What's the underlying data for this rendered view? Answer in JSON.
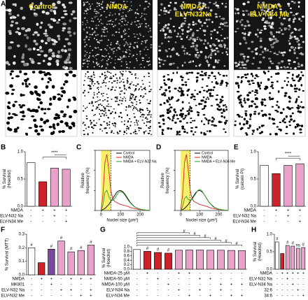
{
  "panel_a": {
    "label": "A",
    "images": [
      {
        "label_lines": [
          "Control"
        ]
      },
      {
        "label_lines": [
          "NMDA"
        ]
      },
      {
        "label_lines": [
          "NMDA+",
          "ELV-N32Na"
        ]
      },
      {
        "label_lines": [
          "NMDA+",
          "ELV-N34 Me"
        ]
      }
    ]
  },
  "chart_data": [
    {
      "type": "bar",
      "panel": "B",
      "ylabel_lines": [
        "% Survival",
        "(Hoechst)"
      ],
      "ylim": [
        0,
        1.0
      ],
      "yticks": [
        {
          "value": 0,
          "label": "0.0"
        },
        0.5,
        {
          "value": 1,
          "label": "1.0"
        }
      ],
      "values": [
        0.8,
        0.45,
        0.7,
        0.68
      ],
      "colors": [
        "#ffffff",
        "#cc2229",
        "#e8a2c9",
        "#e8a2c9"
      ],
      "annotation": "****",
      "conditions": [
        {
          "name": "NMDA",
          "signs": [
            "-",
            "+",
            "+",
            "+"
          ]
        },
        {
          "name": "ELV-N32 Na",
          "signs": [
            "-",
            "-",
            "+",
            "-"
          ]
        },
        {
          "name": "ELV-N34 Me",
          "signs": [
            "-",
            "-",
            "-",
            "+"
          ]
        }
      ]
    },
    {
      "type": "line",
      "panel": "C",
      "xlabel": "Nuclei size (µm²)",
      "ylabel_lines": [
        "Relative",
        "frequency (%)"
      ],
      "xlim": [
        -30,
        250
      ],
      "ylim": [
        0,
        3
      ],
      "xticks": [
        0,
        100,
        200
      ],
      "yticks": [
        0,
        1,
        2,
        3
      ],
      "highlight_range": [
        0,
        50
      ],
      "threshold": 50,
      "x": [
        0,
        10,
        20,
        30,
        40,
        50,
        60,
        70,
        80,
        90,
        100,
        110,
        120,
        130,
        140,
        150,
        160,
        170,
        180,
        190,
        200,
        210,
        220,
        230,
        240,
        250
      ],
      "series": [
        {
          "name": "Control",
          "color": "#000000",
          "values": [
            0,
            0.05,
            0.1,
            0.2,
            0.3,
            0.45,
            0.6,
            0.75,
            0.9,
            0.98,
            1.0,
            0.95,
            0.85,
            0.7,
            0.55,
            0.4,
            0.3,
            0.2,
            0.14,
            0.1,
            0.07,
            0.05,
            0.03,
            0.02,
            0.01,
            0
          ]
        },
        {
          "name": "NMDA",
          "color": "#d62728",
          "values": [
            0,
            0.8,
            2.4,
            2.8,
            2.0,
            1.0,
            0.6,
            0.45,
            0.4,
            0.35,
            0.3,
            0.28,
            0.25,
            0.22,
            0.2,
            0.15,
            0.12,
            0.1,
            0.08,
            0.06,
            0.05,
            0.04,
            0.03,
            0.02,
            0.01,
            0
          ]
        },
        {
          "name": "NMDA + ELV-N32 Na",
          "color": "#2ca02c",
          "values": [
            0,
            0.3,
            0.9,
            1.0,
            0.7,
            0.5,
            0.5,
            0.6,
            0.75,
            0.9,
            0.95,
            0.9,
            0.8,
            0.65,
            0.5,
            0.38,
            0.28,
            0.2,
            0.14,
            0.1,
            0.07,
            0.05,
            0.03,
            0.02,
            0.01,
            0
          ]
        }
      ]
    },
    {
      "type": "line",
      "panel": "D",
      "xlabel": "Nuclei size (µm²)",
      "ylabel_lines": [
        "Relative",
        "frequency (%)"
      ],
      "xlim": [
        -30,
        250
      ],
      "ylim": [
        0,
        3
      ],
      "xticks": [
        0,
        100,
        200
      ],
      "yticks": [
        0,
        1,
        2,
        3
      ],
      "highlight_range": [
        0,
        50
      ],
      "threshold": 50,
      "x": [
        0,
        10,
        20,
        30,
        40,
        50,
        60,
        70,
        80,
        90,
        100,
        110,
        120,
        130,
        140,
        150,
        160,
        170,
        180,
        190,
        200,
        210,
        220,
        230,
        240,
        250
      ],
      "series": [
        {
          "name": "Control",
          "color": "#000000",
          "values": [
            0,
            0.05,
            0.1,
            0.2,
            0.3,
            0.45,
            0.6,
            0.75,
            0.9,
            0.98,
            1.0,
            0.95,
            0.85,
            0.7,
            0.55,
            0.4,
            0.3,
            0.2,
            0.14,
            0.1,
            0.07,
            0.05,
            0.03,
            0.02,
            0.01,
            0
          ]
        },
        {
          "name": "NMDA",
          "color": "#d62728",
          "values": [
            0,
            0.8,
            2.4,
            2.8,
            2.0,
            1.0,
            0.6,
            0.45,
            0.4,
            0.35,
            0.3,
            0.28,
            0.25,
            0.22,
            0.2,
            0.15,
            0.12,
            0.1,
            0.08,
            0.06,
            0.05,
            0.04,
            0.03,
            0.02,
            0.01,
            0
          ]
        },
        {
          "name": "NMDA + ELV-N34 Me",
          "color": "#2ca02c",
          "values": [
            0,
            0.2,
            0.6,
            0.7,
            0.55,
            0.5,
            0.55,
            0.7,
            0.85,
            1.0,
            1.05,
            1.0,
            0.85,
            0.7,
            0.55,
            0.4,
            0.3,
            0.22,
            0.15,
            0.1,
            0.07,
            0.05,
            0.03,
            0.02,
            0.01,
            0
          ]
        }
      ]
    },
    {
      "type": "bar",
      "panel": "E",
      "ylabel_lines": [
        "% Survival",
        "(calcein PI)"
      ],
      "ylim": [
        0,
        1.0
      ],
      "yticks": [
        {
          "value": 0,
          "label": "0.0"
        },
        0.5,
        {
          "value": 1,
          "label": "1.0"
        }
      ],
      "values": [
        0.75,
        0.6,
        0.75,
        0.78
      ],
      "colors": [
        "#ffffff",
        "#cc2229",
        "#e8a2c9",
        "#e8a2c9"
      ],
      "annotation": "****",
      "conditions": [
        {
          "name": "NMDA",
          "signs": [
            "-",
            "+",
            "+",
            "+"
          ]
        },
        {
          "name": "ELV-N32 Na",
          "signs": [
            "-",
            "-",
            "+",
            "-"
          ]
        },
        {
          "name": "ELV-N34 Me",
          "signs": [
            "-",
            "-",
            "-",
            "+"
          ]
        }
      ]
    },
    {
      "type": "bar",
      "panel": "F",
      "ylabel_lines": [
        "% Survival (MTT)"
      ],
      "ylim": [
        0,
        0.3
      ],
      "yticks": [
        {
          "value": 0,
          "label": "0.0"
        },
        0.1,
        0.2,
        0.3
      ],
      "values": [
        0.2,
        0.09,
        0.19,
        0.25,
        0.17,
        0.18,
        0.22
      ],
      "colors": [
        "#ffffff",
        "#cc2229",
        "#7b4a9e",
        "#e8a2c9",
        "#e8a2c9",
        "#e8a2c9",
        "#e8a2c9"
      ],
      "bar_annotations": [
        "#",
        null,
        "#",
        "#",
        "#",
        "#",
        "#"
      ],
      "conditions": [
        {
          "name": "NMDA",
          "signs": [
            "-",
            "+",
            "+",
            "-",
            "+",
            "+",
            "+"
          ]
        },
        {
          "name": "MK801",
          "signs": [
            "-",
            "-",
            "+",
            "-",
            "-",
            "-",
            "-"
          ]
        },
        {
          "name": "ELV-N32 Na",
          "signs": [
            "-",
            "-",
            "-",
            "+",
            "+",
            "-",
            "+"
          ]
        },
        {
          "name": "ELV-N32 Me",
          "signs": [
            "-",
            "-",
            "-",
            "-",
            "-",
            "+",
            "+"
          ]
        }
      ]
    },
    {
      "type": "bar",
      "panel": "G",
      "ylabel_lines": [
        "% Survival",
        "(Hoechst)"
      ],
      "ylim": [
        0,
        1.0
      ],
      "yticks": [
        {
          "value": 0,
          "label": "0.0"
        },
        0.2,
        0.4,
        0.6,
        0.8,
        {
          "value": 1,
          "label": "1.0"
        }
      ],
      "values": [
        0.88,
        0.8,
        0.75,
        0.72,
        0.85,
        0.86,
        0.86,
        0.85,
        0.85,
        0.84,
        0.83
      ],
      "colors": [
        "#ffffff",
        "#cc2229",
        "#cc2229",
        "#cc2229",
        "#e8a2c9",
        "#e8a2c9",
        "#e8a2c9",
        "#e8a2c9",
        "#e8a2c9",
        "#e8a2c9",
        "#e8a2c9"
      ],
      "bar_annotations": [
        null,
        "#",
        "#",
        "#",
        null,
        null,
        null,
        null,
        null,
        null,
        null
      ],
      "bracket_labels": [
        "#",
        "#",
        "#",
        "#",
        "#",
        "#"
      ],
      "conditions": [
        {
          "name": "NMDA-25 µM",
          "signs": [
            "-",
            "+",
            "-",
            "-",
            "+",
            "+",
            "-",
            "-",
            "-",
            "-",
            "-"
          ]
        },
        {
          "name": "NMDA-50 µM",
          "signs": [
            "-",
            "-",
            "+",
            "-",
            "-",
            "-",
            "+",
            "+",
            "-",
            "-",
            "-"
          ]
        },
        {
          "name": "NMDA-100 µM",
          "signs": [
            "-",
            "-",
            "-",
            "+",
            "-",
            "-",
            "-",
            "-",
            "+",
            "+",
            "+"
          ]
        },
        {
          "name": "ELV-N34 Na",
          "signs": [
            "-",
            "-",
            "-",
            "-",
            "+",
            "-",
            "+",
            "-",
            "+",
            "-",
            "-"
          ]
        },
        {
          "name": "ELV-N34 Me",
          "signs": [
            "-",
            "-",
            "-",
            "-",
            "-",
            "+",
            "-",
            "+",
            "-",
            "+",
            "+"
          ]
        }
      ]
    },
    {
      "type": "bar",
      "panel": "H",
      "ylabel_lines": [
        "% Survival",
        "(Hoechst)"
      ],
      "ylim": [
        0,
        1.0
      ],
      "yticks": [
        {
          "value": 0,
          "label": "0.0"
        },
        0.5,
        {
          "value": 1,
          "label": "1.0"
        }
      ],
      "values": [
        0.78,
        0.45,
        0.68,
        0.66,
        0.6,
        0.62
      ],
      "colors": [
        "#ffffff",
        "#cc2229",
        "#e8a2c9",
        "#e8a2c9",
        "#e8a2c9",
        "#e8a2c9"
      ],
      "bar_annotations": [
        "#",
        null,
        "#",
        "#",
        "ns",
        "#"
      ],
      "conditions": [
        {
          "name": "NMDA",
          "signs": [
            "-",
            "+",
            "+",
            "+",
            "+",
            "+"
          ]
        },
        {
          "name": "ELV-N32 Na",
          "signs": [
            "-",
            "-",
            "+",
            "-",
            "-",
            "-"
          ]
        },
        {
          "name": "ELV-N34 Na",
          "signs": [
            "-",
            "-",
            "-",
            "+",
            "-",
            "-"
          ]
        },
        {
          "name": "32:6",
          "signs": [
            "-",
            "-",
            "-",
            "-",
            "+",
            "-"
          ]
        },
        {
          "name": "34:6",
          "signs": [
            "-",
            "-",
            "-",
            "-",
            "-",
            "+"
          ]
        }
      ]
    }
  ]
}
